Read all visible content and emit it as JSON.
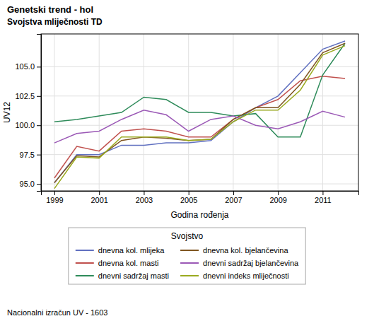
{
  "chart_data": {
    "type": "line",
    "title": "Genetski trend - hol",
    "subtitle": "Svojstva mliječnosti TD",
    "xlabel": "Godina rođenja",
    "ylabel": "UV12",
    "footnote": "Nacionalni izračun UV - 1603",
    "legend_title": "Svojstvo",
    "legend": "bottom",
    "grid": true,
    "xlim": [
      1998.4,
      2012.6
    ],
    "ylim": [
      94.4,
      107.8
    ],
    "xticks": [
      1999,
      2001,
      2003,
      2005,
      2007,
      2009,
      2011
    ],
    "yticks": [
      {
        "value": 95.0,
        "label": "95.0"
      },
      97.5,
      {
        "value": 100.0,
        "label": "100.0"
      },
      102.5,
      {
        "value": 105.0,
        "label": "105.0"
      }
    ],
    "x": [
      1999,
      2000,
      2001,
      2002,
      2003,
      2004,
      2005,
      2006,
      2007,
      2008,
      2009,
      2010,
      2011,
      2012
    ],
    "series": [
      {
        "name": "dnevna kol. mlijeka",
        "color": "#6070c0",
        "values": [
          95.1,
          97.5,
          97.5,
          98.3,
          98.3,
          98.5,
          98.5,
          98.7,
          100.3,
          101.5,
          102.5,
          104.5,
          106.5,
          107.2
        ]
      },
      {
        "name": "dnevna kol. masti",
        "color": "#c0504d",
        "values": [
          95.5,
          98.2,
          97.8,
          99.5,
          99.7,
          99.5,
          99.0,
          99.0,
          100.5,
          101.5,
          102.2,
          103.8,
          104.2,
          104.0
        ]
      },
      {
        "name": "dnevni sadržaj masti",
        "color": "#2e8b5a",
        "values": [
          100.3,
          100.5,
          100.8,
          101.1,
          102.4,
          102.2,
          101.1,
          101.1,
          100.8,
          101.0,
          99.0,
          99.0,
          104.3,
          107.0
        ]
      },
      {
        "name": "dnevna kol. bjelančevina",
        "color": "#7f5520",
        "values": [
          95.1,
          97.4,
          97.3,
          98.7,
          99.0,
          98.9,
          98.7,
          98.8,
          100.5,
          101.5,
          101.5,
          103.5,
          106.2,
          107.0
        ]
      },
      {
        "name": "dnevni sadržaj bjelančevina",
        "color": "#9b59b6",
        "values": [
          98.5,
          99.3,
          99.5,
          100.5,
          101.3,
          100.9,
          99.5,
          100.5,
          100.8,
          100.0,
          99.7,
          100.3,
          101.2,
          100.7
        ]
      },
      {
        "name": "dnevni indeks mliječnosti",
        "color": "#9aaa20",
        "values": [
          94.6,
          97.3,
          97.2,
          99.0,
          99.0,
          99.0,
          98.7,
          98.8,
          100.3,
          101.3,
          101.3,
          103.0,
          106.0,
          106.8
        ]
      }
    ]
  }
}
